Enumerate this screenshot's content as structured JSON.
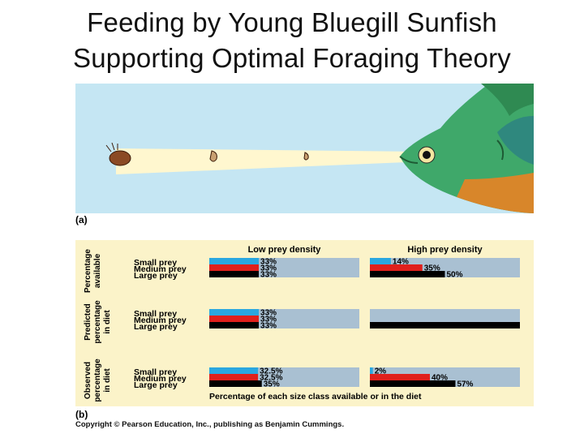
{
  "title_lines": [
    "Feeding by Young Bluegill Sunfish",
    "Supporting Optimal Foraging Theory"
  ],
  "panel_labels": {
    "a": "(a)",
    "b": "(b)"
  },
  "copyright": "Copyright © Pearson Education, Inc., publishing as Benjamin Cummings.",
  "colors": {
    "small": "#2aa7e0",
    "medium": "#e0201c",
    "large": "#000000",
    "panel_bg": "#fbf3c9",
    "bar_track": "#a9c0d2",
    "water": "#c5e6f3",
    "beam": "#fff7cf"
  },
  "chart_data": {
    "type": "bar",
    "orientation": "horizontal",
    "columns": [
      "Low prey density",
      "High prey density"
    ],
    "rows": [
      {
        "label": "Percentage available",
        "label_lines": [
          "Percentage",
          "available"
        ]
      },
      {
        "label": "Predicted percentage in diet",
        "label_lines": [
          "Predicted",
          "percentage",
          "in diet"
        ]
      },
      {
        "label": "Observed percentage in diet",
        "label_lines": [
          "Observed",
          "percentage",
          "in diet"
        ]
      }
    ],
    "categories": [
      "Small prey",
      "Medium prey",
      "Large prey"
    ],
    "xlabel": "Percentage of each size class available or in the diet",
    "xlim": [
      0,
      100
    ],
    "values": {
      "Low prey density": [
        [
          33,
          33,
          33
        ],
        [
          33,
          33,
          33
        ],
        [
          32.5,
          32.5,
          35
        ]
      ],
      "High prey density": [
        [
          14,
          35,
          50
        ],
        [
          0,
          0,
          100
        ],
        [
          2,
          40,
          57
        ]
      ]
    },
    "value_labels": {
      "Low prey density": [
        [
          "33%",
          "33%",
          "33%"
        ],
        [
          "33%",
          "33%",
          "33%"
        ],
        [
          "32.5%",
          "32.5%",
          "35%"
        ]
      ],
      "High prey density": [
        [
          "14%",
          "35%",
          "50%"
        ],
        [
          "",
          "",
          "100%"
        ],
        [
          "2%",
          "40%",
          "57%"
        ]
      ]
    }
  }
}
